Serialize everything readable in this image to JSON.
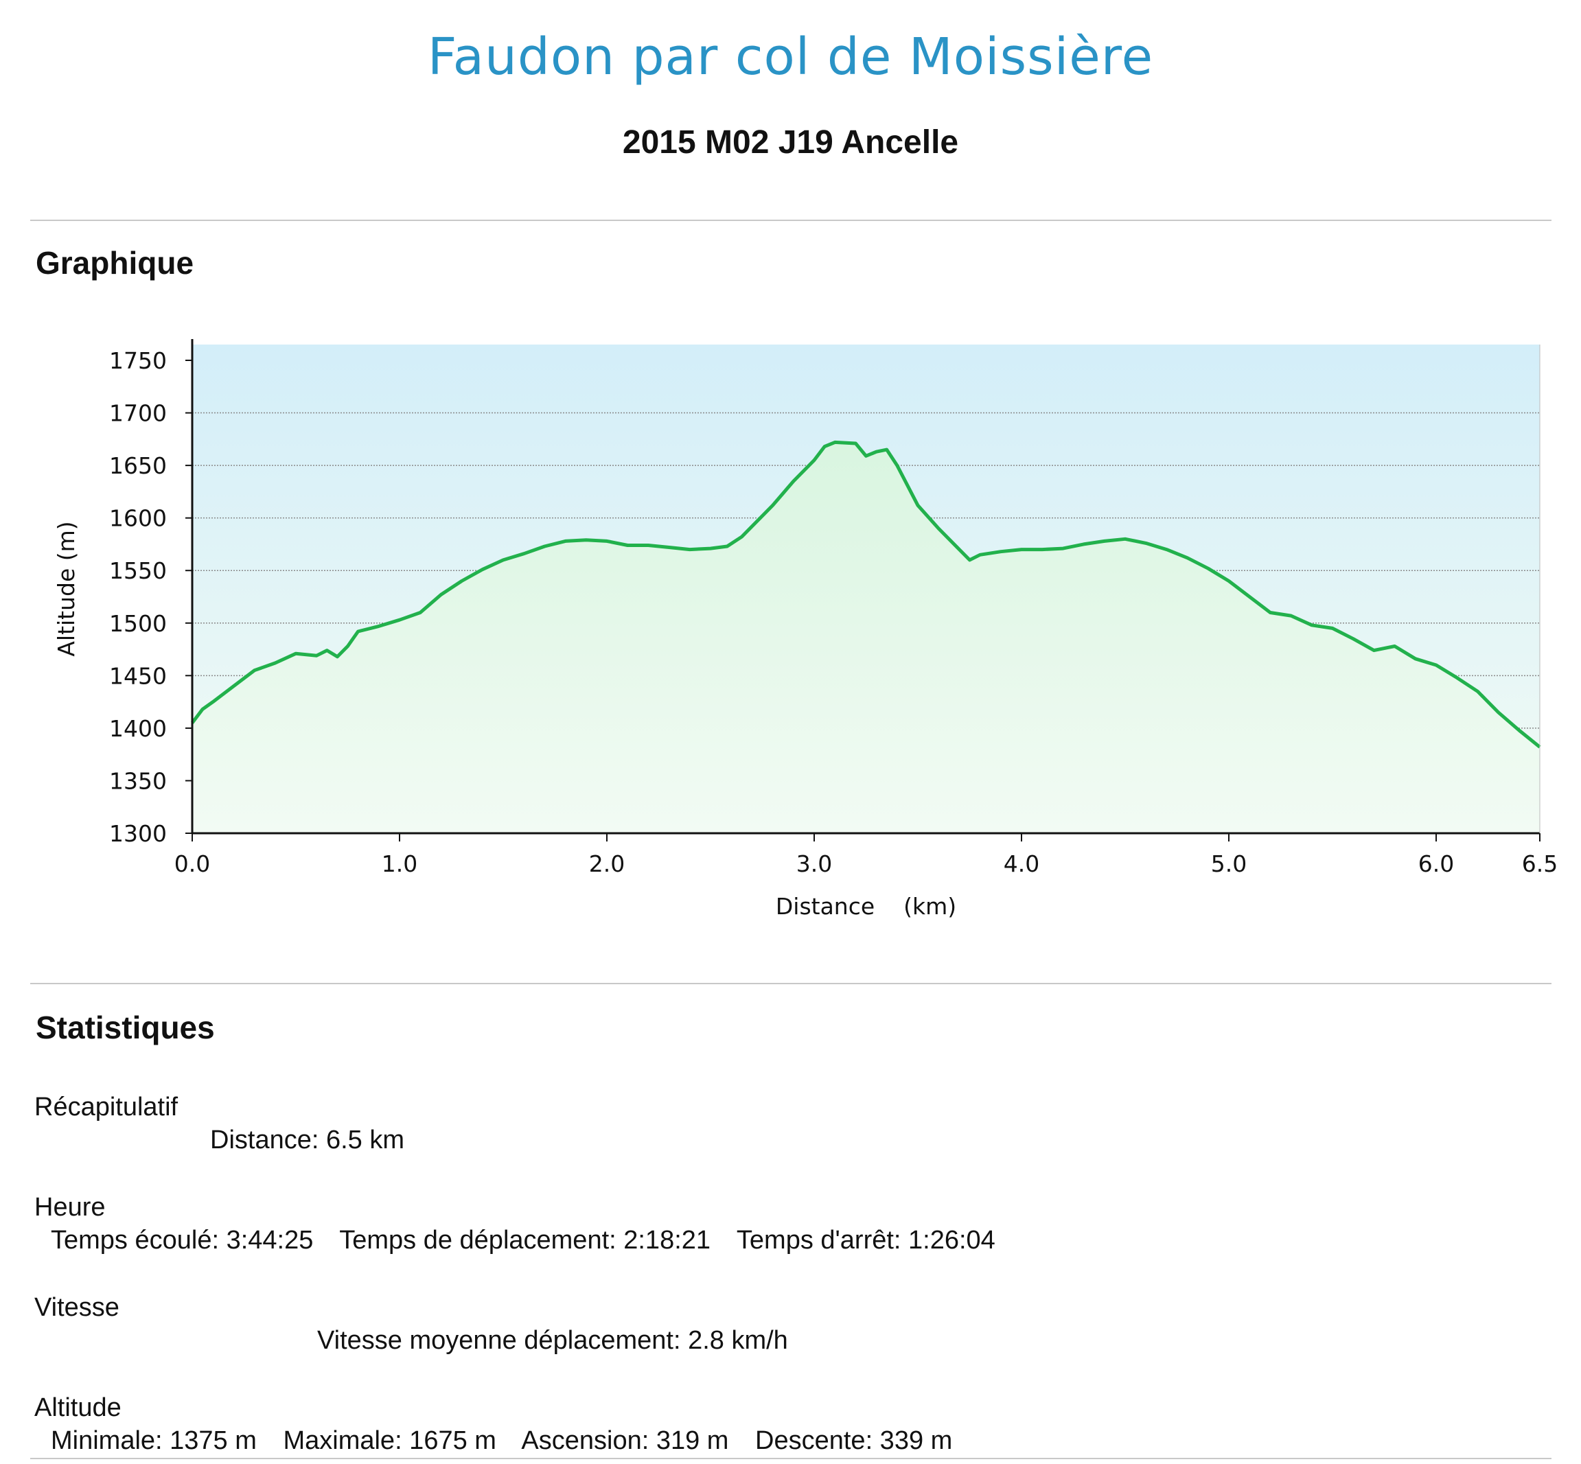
{
  "header": {
    "title": "Faudon par col de Moissière",
    "subtitle": "2015 M02 J19 Ancelle"
  },
  "sections": {
    "graph_title": "Graphique",
    "stats_title": "Statistiques"
  },
  "stats": {
    "recap": {
      "label": "Récapitulatif",
      "distance": "Distance: 6.5 km"
    },
    "time": {
      "label": "Heure",
      "elapsed": "Temps écoulé: 3:44:25",
      "moving": "Temps de déplacement: 2:18:21",
      "stopped": "Temps d'arrêt: 1:26:04"
    },
    "speed": {
      "label": "Vitesse",
      "avg": "Vitesse moyenne déplacement: 2.8 km/h"
    },
    "altitude": {
      "label": "Altitude",
      "min": "Minimale: 1375 m",
      "max": "Maximale: 1675 m",
      "ascent": "Ascension: 319 m",
      "descent": "Descente: 339 m"
    }
  },
  "colors": {
    "line": "#22b14c",
    "fill": "#d9f5e0",
    "bg_top": "#d3eef9",
    "bg_bottom": "#f2fbf4",
    "grid": "#8a8a8a",
    "title": "#2a93c6"
  },
  "chart_data": {
    "type": "area",
    "xlabel": "Distance    (km)",
    "ylabel": "Altitude (m)",
    "xlim": [
      0,
      6.5
    ],
    "ylim": [
      1300,
      1750
    ],
    "x_ticks": [
      "0.0",
      "1.0",
      "2.0",
      "3.0",
      "4.0",
      "5.0",
      "6.0",
      "6.5"
    ],
    "y_ticks": [
      "1300",
      "1350",
      "1400",
      "1450",
      "1500",
      "1550",
      "1600",
      "1650",
      "1700",
      "1750"
    ],
    "grid": true,
    "x": [
      0.0,
      0.05,
      0.1,
      0.2,
      0.3,
      0.4,
      0.5,
      0.6,
      0.65,
      0.7,
      0.75,
      0.8,
      0.9,
      1.0,
      1.1,
      1.2,
      1.3,
      1.4,
      1.5,
      1.6,
      1.7,
      1.8,
      1.9,
      2.0,
      2.1,
      2.2,
      2.3,
      2.4,
      2.5,
      2.58,
      2.65,
      2.8,
      2.9,
      3.0,
      3.05,
      3.1,
      3.2,
      3.25,
      3.3,
      3.35,
      3.4,
      3.5,
      3.6,
      3.7,
      3.75,
      3.8,
      3.9,
      4.0,
      4.1,
      4.2,
      4.3,
      4.4,
      4.5,
      4.6,
      4.7,
      4.8,
      4.9,
      5.0,
      5.1,
      5.2,
      5.3,
      5.4,
      5.5,
      5.6,
      5.7,
      5.8,
      5.9,
      6.0,
      6.1,
      6.2,
      6.3,
      6.4,
      6.5
    ],
    "y": [
      1405,
      1418,
      1425,
      1440,
      1455,
      1462,
      1471,
      1469,
      1474,
      1468,
      1478,
      1492,
      1497,
      1503,
      1510,
      1527,
      1540,
      1551,
      1560,
      1566,
      1573,
      1578,
      1579,
      1578,
      1574,
      1574,
      1572,
      1570,
      1571,
      1573,
      1582,
      1612,
      1635,
      1655,
      1668,
      1672,
      1671,
      1659,
      1663,
      1665,
      1650,
      1612,
      1590,
      1570,
      1560,
      1565,
      1568,
      1570,
      1570,
      1571,
      1575,
      1578,
      1580,
      1576,
      1570,
      1562,
      1552,
      1540,
      1525,
      1510,
      1507,
      1498,
      1495,
      1485,
      1474,
      1478,
      1466,
      1460,
      1448,
      1435,
      1415,
      1398,
      1382
    ]
  }
}
